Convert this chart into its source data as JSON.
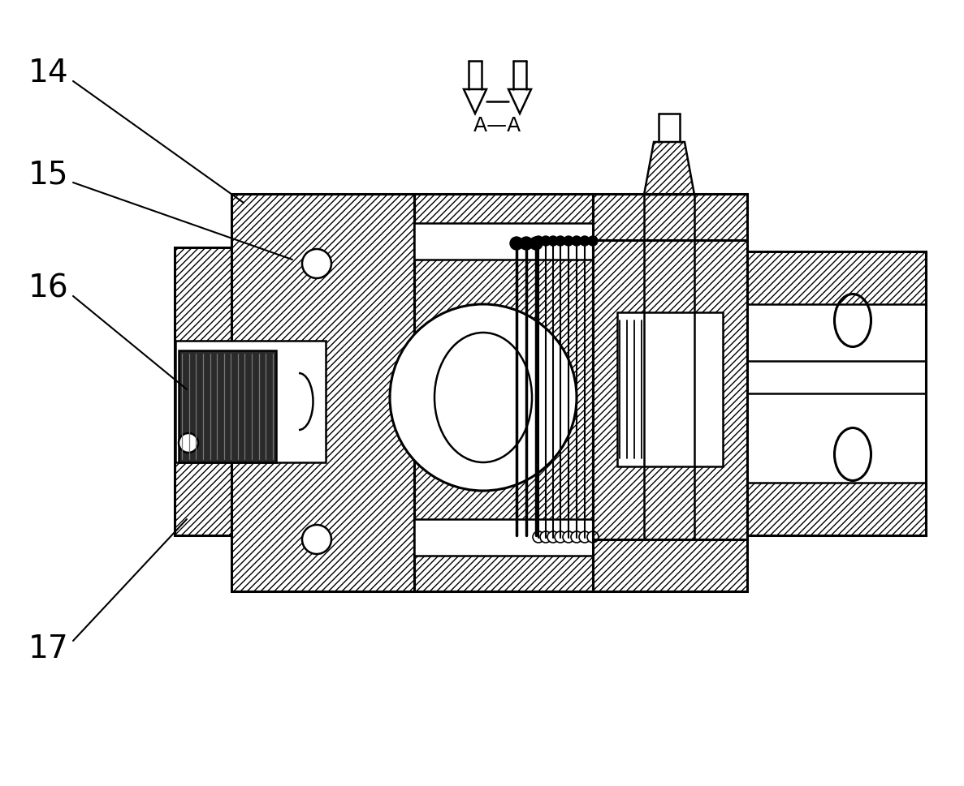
{
  "bg_color": "#ffffff",
  "line_color": "#000000",
  "lw": 1.8,
  "lw2": 2.2
}
